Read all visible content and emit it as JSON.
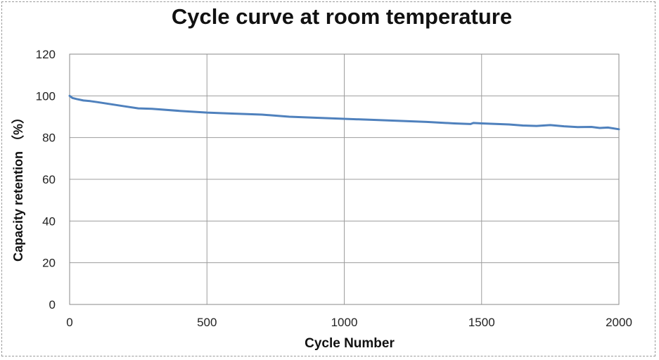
{
  "chart_data": {
    "type": "line",
    "title": "Cycle curve at room temperature",
    "xlabel": "Cycle Number",
    "ylabel": "Capacity retention （%）",
    "xlim": [
      0,
      2000
    ],
    "ylim": [
      0,
      120
    ],
    "x_ticks": [
      0,
      500,
      1000,
      1500,
      2000
    ],
    "y_ticks": [
      0,
      20,
      40,
      60,
      80,
      100,
      120
    ],
    "grid": true,
    "legend": "none",
    "series": [
      {
        "color": "#4f81bd",
        "x": [
          0,
          10,
          25,
          50,
          75,
          100,
          150,
          200,
          250,
          300,
          400,
          500,
          600,
          700,
          800,
          900,
          1000,
          1100,
          1200,
          1300,
          1400,
          1460,
          1470,
          1500,
          1600,
          1650,
          1700,
          1750,
          1800,
          1850,
          1900,
          1930,
          1960,
          2000
        ],
        "values": [
          100,
          99,
          98.5,
          97.8,
          97.5,
          97,
          96,
          95,
          94,
          93.8,
          92.8,
          92,
          91.5,
          91,
          90,
          89.5,
          89,
          88.5,
          88,
          87.5,
          86.8,
          86.5,
          87,
          86.8,
          86.3,
          85.8,
          85.6,
          86,
          85.4,
          85,
          85.1,
          84.6,
          84.8,
          84
        ]
      }
    ]
  }
}
